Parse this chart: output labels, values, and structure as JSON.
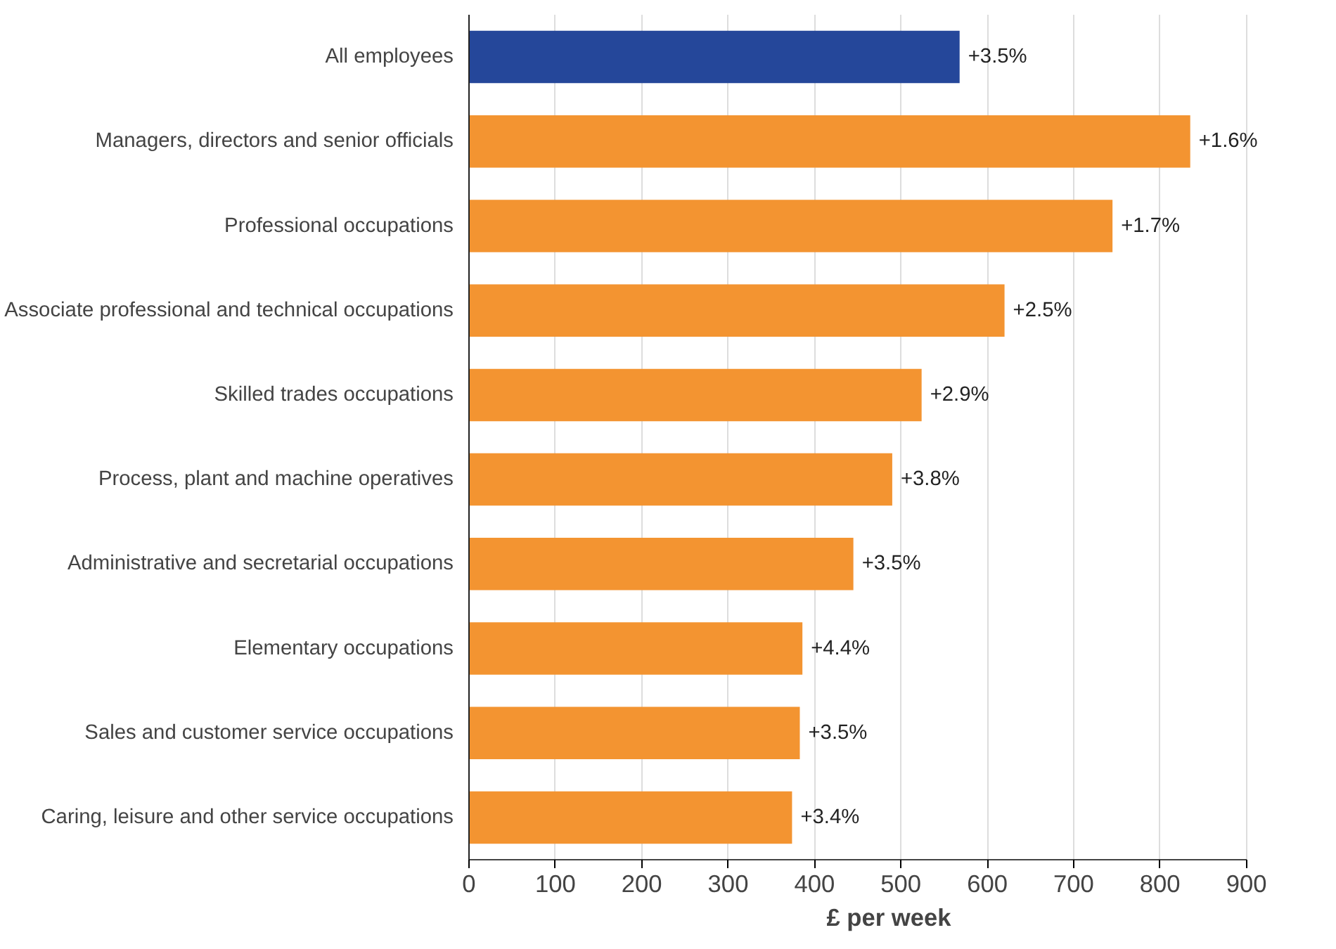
{
  "chart_data": {
    "type": "bar",
    "orientation": "horizontal",
    "xlabel": "£ per week",
    "categories": [
      "All employees",
      "Managers, directors and senior officials",
      "Professional occupations",
      "Associate professional and technical occupations",
      "Skilled trades occupations",
      "Process, plant and machine operatives",
      "Administrative and secretarial occupations",
      "Elementary occupations",
      "Sales and customer service occupations",
      "Caring, leisure and other service occupations"
    ],
    "values": [
      568,
      835,
      745,
      620,
      524,
      490,
      445,
      386,
      383,
      374
    ],
    "colors": [
      "#25479a",
      "#f39431",
      "#f39431",
      "#f39431",
      "#f39431",
      "#f39431",
      "#f39431",
      "#f39431",
      "#f39431",
      "#f39431"
    ],
    "annotations": [
      {
        "text": "+3.5%",
        "x": 568,
        "y": "All employees"
      },
      {
        "text": "+1.6%",
        "x": 835,
        "y": "Managers, directors and senior officials"
      },
      {
        "text": "+1.7%",
        "x": 745,
        "y": "Professional occupations"
      },
      {
        "text": "+2.5%",
        "x": 620,
        "y": "Associate professional and technical occupations"
      },
      {
        "text": "+2.9%",
        "x": 524,
        "y": "Skilled trades occupations"
      },
      {
        "text": "+3.8%",
        "x": 490,
        "y": "Process, plant and machine operatives"
      },
      {
        "text": "+3.5%",
        "x": 445,
        "y": "Administrative and secretarial occupations"
      },
      {
        "text": "+4.4%",
        "x": 386,
        "y": "Elementary occupations"
      },
      {
        "text": "+3.5%",
        "x": 383,
        "y": "Sales and customer service occupations"
      },
      {
        "text": "+3.4%",
        "x": 374,
        "y": "Caring, leisure and other service occupations"
      }
    ],
    "xlim": [
      0,
      900
    ],
    "xticks": [
      0,
      100,
      200,
      300,
      400,
      500,
      600,
      700,
      800,
      900
    ],
    "grid": "x"
  }
}
